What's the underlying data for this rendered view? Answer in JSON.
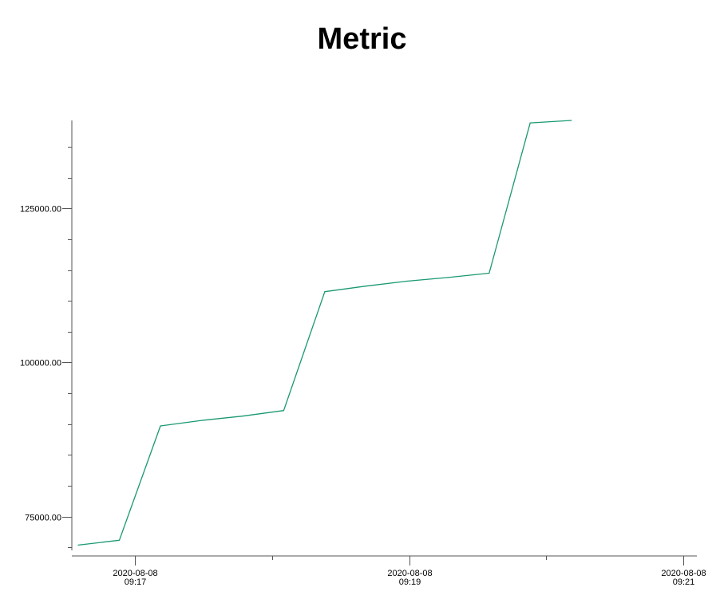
{
  "chart_data": {
    "type": "line",
    "title": "Metric",
    "xlabel": "",
    "ylabel": "",
    "series": [
      {
        "color": "#1a9873",
        "points": [
          {
            "x": "2020-08-08T09:16:35",
            "y": 70350
          },
          {
            "x": "2020-08-08T09:16:53",
            "y": 71150
          },
          {
            "x": "2020-08-08T09:17:11",
            "y": 89700
          },
          {
            "x": "2020-08-08T09:17:29",
            "y": 90600
          },
          {
            "x": "2020-08-08T09:17:47",
            "y": 91300
          },
          {
            "x": "2020-08-08T09:18:05",
            "y": 92200
          },
          {
            "x": "2020-08-08T09:18:23",
            "y": 111500
          },
          {
            "x": "2020-08-08T09:18:41",
            "y": 112400
          },
          {
            "x": "2020-08-08T09:18:59",
            "y": 113200
          },
          {
            "x": "2020-08-08T09:19:17",
            "y": 113800
          },
          {
            "x": "2020-08-08T09:19:35",
            "y": 114500
          },
          {
            "x": "2020-08-08T09:19:53",
            "y": 138900
          },
          {
            "x": "2020-08-08T09:20:11",
            "y": 139300
          }
        ]
      }
    ],
    "y_ticks": [
      {
        "value": 75000,
        "label": "75000.00"
      },
      {
        "value": 100000,
        "label": "100000.00"
      },
      {
        "value": 125000,
        "label": "125000.00"
      }
    ],
    "y_minor_step": 5000,
    "x_ticks": [
      {
        "x": "2020-08-08T09:17:00",
        "date": "2020-08-08",
        "time": "09:17"
      },
      {
        "x": "2020-08-08T09:19:00",
        "date": "2020-08-08",
        "time": "09:19"
      },
      {
        "x": "2020-08-08T09:21:00",
        "date": "2020-08-08",
        "time": "09:21"
      }
    ],
    "x_minor_ticks": [
      "2020-08-08T09:18:00",
      "2020-08-08T09:20:00"
    ],
    "xlim": [
      "2020-08-08T09:16:35",
      "2020-08-08T09:21:06"
    ],
    "ylim": [
      69500,
      139300
    ],
    "grid": false
  }
}
